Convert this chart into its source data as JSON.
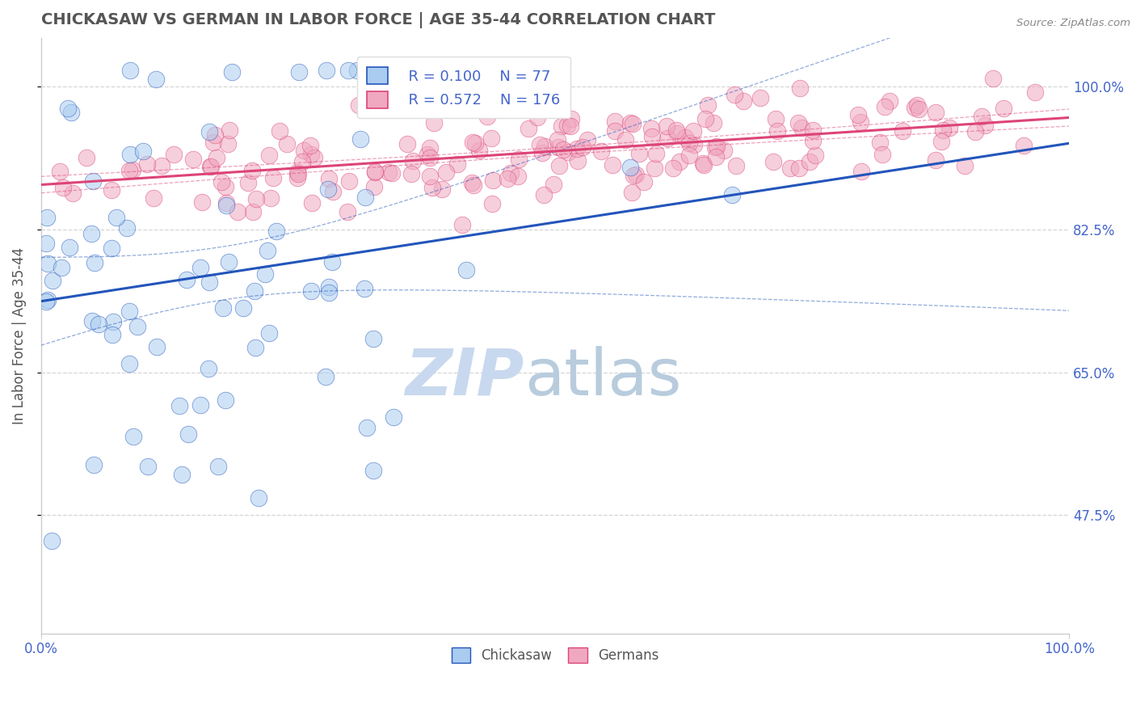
{
  "title": "CHICKASAW VS GERMAN IN LABOR FORCE | AGE 35-44 CORRELATION CHART",
  "source_text": "Source: ZipAtlas.com",
  "ylabel": "In Labor Force | Age 35-44",
  "xlim": [
    0.0,
    1.0
  ],
  "ylim": [
    0.33,
    1.06
  ],
  "yticks": [
    0.475,
    0.65,
    0.825,
    1.0
  ],
  "ytick_labels": [
    "47.5%",
    "65.0%",
    "82.5%",
    "100.0%"
  ],
  "xtick_labels": [
    "0.0%",
    "100.0%"
  ],
  "legend_chickasaw_R": "R = 0.100",
  "legend_chickasaw_N": "N = 77",
  "legend_german_R": "R = 0.572",
  "legend_german_N": "N = 176",
  "chickasaw_color": "#aaccf0",
  "german_color": "#f0a8c0",
  "chickasaw_line_color": "#2255bb",
  "german_line_color": "#dd4477",
  "background_color": "#ffffff",
  "grid_color": "#cccccc",
  "watermark_ZIP": "ZIP",
  "watermark_atlas": "atlas",
  "watermark_color_ZIP": "#c8d8ee",
  "watermark_color_atlas": "#b8ccdd",
  "title_color": "#555555",
  "label_color": "#4466cc",
  "annotation_color": "#808080"
}
